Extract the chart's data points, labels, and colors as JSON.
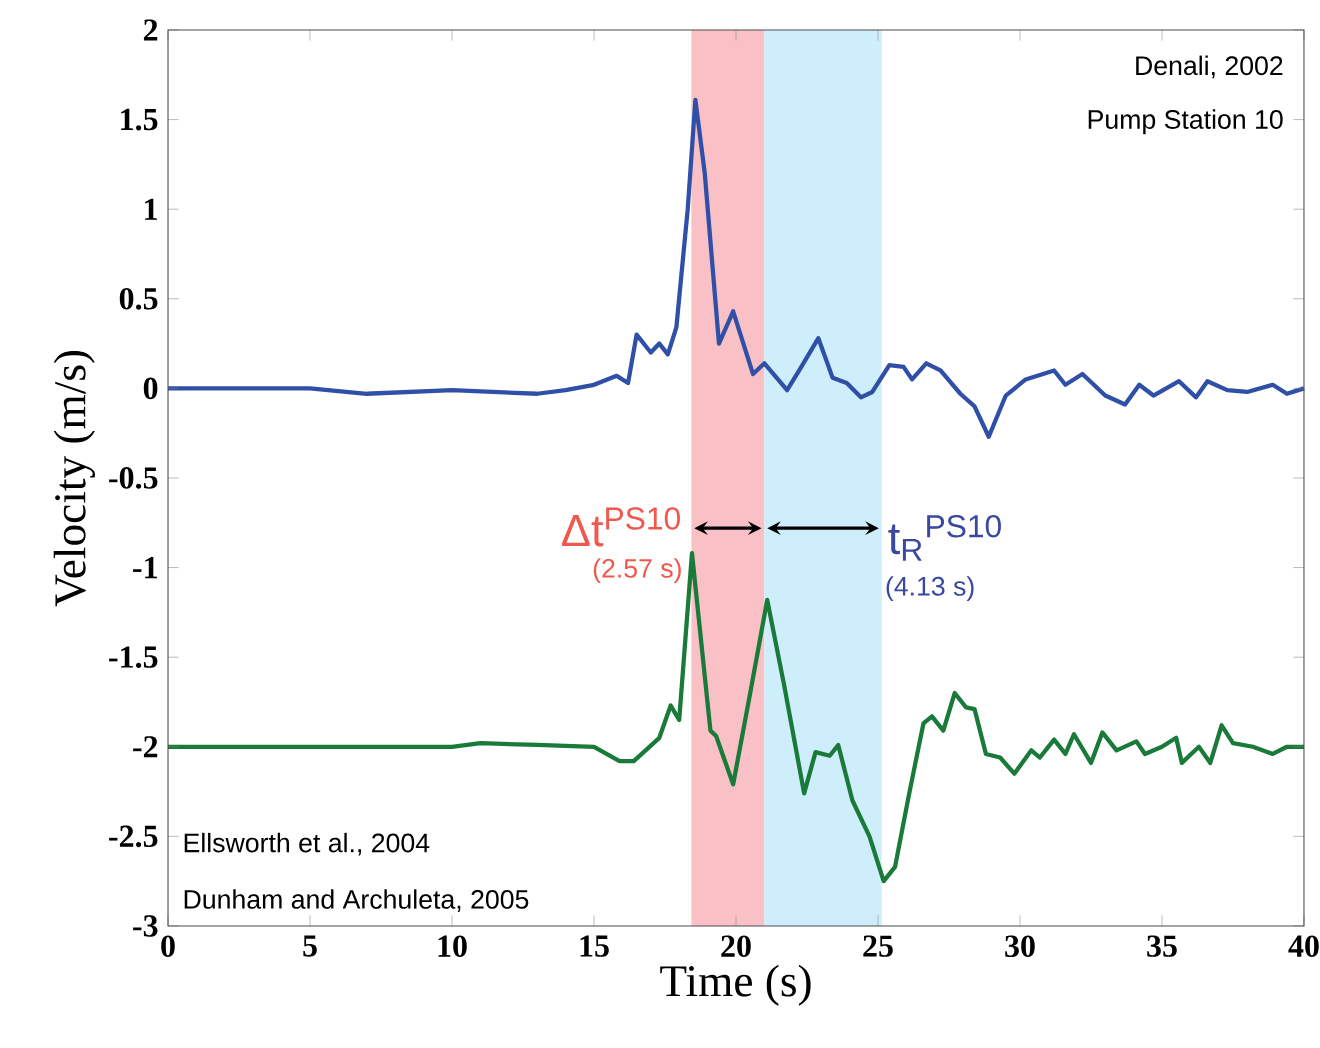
{
  "chart_data": {
    "type": "line",
    "xlabel": "Time (s)",
    "ylabel": "Velocity (m/s)",
    "xlim": [
      0,
      40
    ],
    "ylim": [
      -3,
      2
    ],
    "xticks": [
      0,
      5,
      10,
      15,
      20,
      25,
      30,
      35,
      40
    ],
    "yticks": [
      -3,
      -2.5,
      -2,
      -1.5,
      -1,
      -0.5,
      0,
      0.5,
      1,
      1.5,
      2
    ],
    "line_style": "solid",
    "series": [
      {
        "color": "#3050a8",
        "x": [
          0,
          5,
          7,
          10,
          13,
          14,
          15,
          15.8,
          16.2,
          16.5,
          17,
          17.3,
          17.6,
          17.9,
          18.3,
          18.57,
          18.9,
          19.4,
          19.9,
          20.6,
          21.0,
          21.8,
          22.3,
          22.9,
          23.4,
          23.9,
          24.4,
          24.8,
          25.4,
          25.9,
          26.2,
          26.7,
          27.2,
          27.9,
          28.4,
          28.9,
          29.5,
          30.2,
          31.2,
          31.6,
          32.2,
          33.0,
          33.7,
          34.2,
          34.7,
          35.6,
          36.2,
          36.6,
          37.3,
          38.0,
          38.9,
          39.4,
          40
        ],
        "values": [
          0,
          0,
          -0.03,
          -0.01,
          -0.03,
          -0.01,
          0.02,
          0.07,
          0.03,
          0.3,
          0.2,
          0.25,
          0.19,
          0.34,
          1.0,
          1.61,
          1.2,
          0.25,
          0.43,
          0.08,
          0.14,
          -0.01,
          0.12,
          0.28,
          0.06,
          0.03,
          -0.05,
          -0.02,
          0.13,
          0.12,
          0.05,
          0.14,
          0.1,
          -0.03,
          -0.1,
          -0.27,
          -0.04,
          0.05,
          0.1,
          0.02,
          0.08,
          -0.04,
          -0.09,
          0.02,
          -0.04,
          0.04,
          -0.05,
          0.04,
          -0.01,
          -0.02,
          0.02,
          -0.03,
          0
        ]
      },
      {
        "color": "#1a7a3a",
        "x": [
          0,
          5,
          10,
          11,
          13,
          15,
          15.9,
          16.4,
          17.3,
          17.7,
          18.0,
          18.45,
          19.1,
          19.3,
          19.9,
          20.5,
          21.1,
          21.7,
          22.4,
          22.8,
          23.3,
          23.6,
          24.1,
          24.7,
          25.2,
          25.6,
          26.1,
          26.6,
          26.9,
          27.3,
          27.7,
          28.1,
          28.4,
          28.8,
          29.3,
          29.8,
          30.4,
          30.7,
          31.2,
          31.6,
          31.9,
          32.5,
          32.9,
          33.4,
          34.1,
          34.4,
          35.0,
          35.5,
          35.7,
          36.3,
          36.7,
          37.1,
          37.5,
          38.2,
          38.9,
          39.4,
          40
        ],
        "values": [
          -2,
          -2,
          -2,
          -1.98,
          -1.99,
          -2,
          -2.08,
          -2.08,
          -1.95,
          -1.77,
          -1.85,
          -0.92,
          -1.91,
          -1.94,
          -2.21,
          -1.7,
          -1.18,
          -1.66,
          -2.26,
          -2.03,
          -2.05,
          -1.99,
          -2.3,
          -2.5,
          -2.75,
          -2.67,
          -2.26,
          -1.87,
          -1.83,
          -1.91,
          -1.7,
          -1.78,
          -1.79,
          -2.04,
          -2.06,
          -2.15,
          -2.02,
          -2.06,
          -1.96,
          -2.04,
          -1.93,
          -2.09,
          -1.92,
          -2.02,
          -1.97,
          -2.04,
          -2,
          -1.95,
          -2.09,
          -2,
          -2.09,
          -1.88,
          -1.98,
          -2,
          -2.04,
          -2,
          -2
        ]
      }
    ],
    "bands": [
      {
        "axis": "x",
        "from": 18.43,
        "to": 21.0,
        "label": "Δt$^{PS10}$",
        "color": "#f9c0c6"
      },
      {
        "axis": "x",
        "from": 21.0,
        "to": 25.13,
        "label": "t$_{R}$$^{PS10}$",
        "color": "#cfeefb"
      }
    ],
    "annotations": [
      "Denali, 2002",
      "Pump Station 10",
      "Ellsworth et al., 2004",
      "Dunham and Archuleta, 2005",
      "(2.57 s)",
      "(4.13 s)"
    ]
  }
}
